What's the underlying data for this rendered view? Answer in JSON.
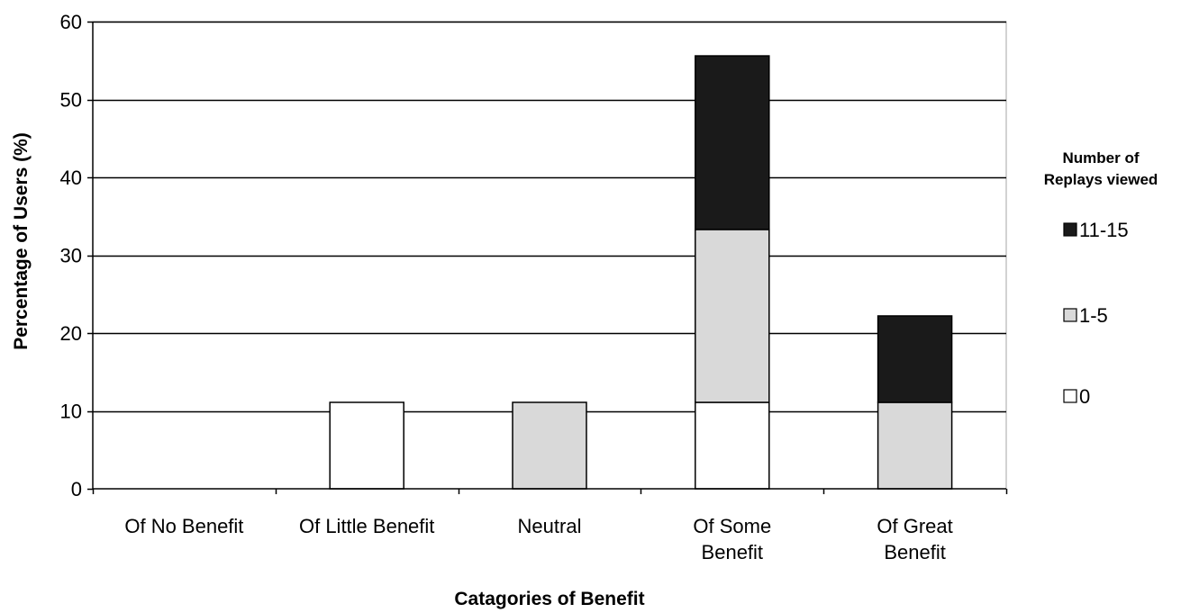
{
  "chart_data": {
    "type": "bar",
    "stacked": true,
    "title": "",
    "xlabel": "Catagories of Benefit",
    "ylabel": "Percentage of Users (%)",
    "ylim": [
      0,
      60
    ],
    "yticks": [
      0,
      10,
      20,
      30,
      40,
      50,
      60
    ],
    "grid": true,
    "categories": [
      [
        "Of No Benefit"
      ],
      [
        "Of Little Benefit"
      ],
      [
        "Neutral"
      ],
      [
        "Of Some",
        "Benefit"
      ],
      [
        "Of Great",
        "Benefit"
      ]
    ],
    "series": [
      {
        "name": "0",
        "color": "#ffffff",
        "values": [
          0,
          11.1,
          0,
          11.1,
          0
        ]
      },
      {
        "name": "1-5",
        "color": "#d9d9d9",
        "values": [
          0,
          0,
          11.1,
          22.2,
          11.1
        ]
      },
      {
        "name": "11-15",
        "color": "#1a1a1a",
        "values": [
          0,
          0,
          0,
          22.3,
          11.1
        ]
      }
    ],
    "legend": {
      "title": [
        "Number of",
        "Replays viewed"
      ],
      "placement": "right",
      "order": [
        "11-15",
        "1-5",
        "0"
      ]
    }
  }
}
